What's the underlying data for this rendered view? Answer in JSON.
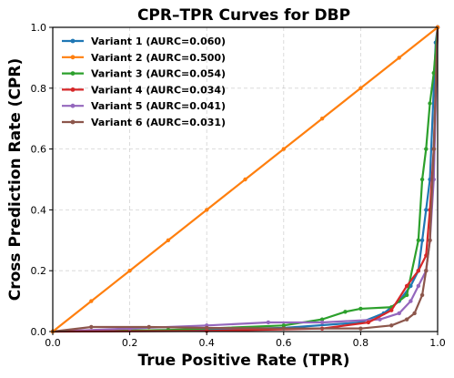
{
  "chart_data": {
    "type": "line",
    "title": "CPR–TPR Curves for DBP",
    "xlabel": "True Positive Rate (TPR)",
    "ylabel": "Cross Prediction Rate (CPR)",
    "xlim": [
      0,
      1
    ],
    "ylim": [
      0,
      1
    ],
    "xticks": [
      "0.0",
      "0.2",
      "0.4",
      "0.6",
      "0.8",
      "1.0"
    ],
    "yticks": [
      "0.0",
      "0.2",
      "0.4",
      "0.6",
      "0.8",
      "1.0"
    ],
    "grid": true,
    "legend_position": "top-left",
    "series": [
      {
        "name": "Variant 1 (AURC=0.060)",
        "color": "#1f77b4",
        "x": [
          0.0,
          0.3,
          0.6,
          0.8,
          0.86,
          0.9,
          0.93,
          0.95,
          0.96,
          0.97,
          0.98,
          0.99,
          0.995,
          1.0
        ],
        "y": [
          0.0,
          0.005,
          0.012,
          0.03,
          0.06,
          0.1,
          0.15,
          0.2,
          0.3,
          0.4,
          0.5,
          0.8,
          0.95,
          1.0
        ]
      },
      {
        "name": "Variant 2 (AURC=0.500)",
        "color": "#ff7f0e",
        "x": [
          0.0,
          0.1,
          0.2,
          0.3,
          0.4,
          0.5,
          0.6,
          0.7,
          0.8,
          0.9,
          1.0
        ],
        "y": [
          0.0,
          0.1,
          0.2,
          0.3,
          0.4,
          0.5,
          0.6,
          0.7,
          0.8,
          0.9,
          1.0
        ]
      },
      {
        "name": "Variant 3 (AURC=0.054)",
        "color": "#2ca02c",
        "x": [
          0.0,
          0.3,
          0.6,
          0.7,
          0.76,
          0.8,
          0.88,
          0.92,
          0.95,
          0.96,
          0.97,
          0.98,
          0.99,
          1.0
        ],
        "y": [
          0.0,
          0.005,
          0.02,
          0.04,
          0.065,
          0.075,
          0.08,
          0.12,
          0.3,
          0.5,
          0.6,
          0.75,
          0.85,
          1.0
        ]
      },
      {
        "name": "Variant 4 (AURC=0.034)",
        "color": "#d62728",
        "x": [
          0.0,
          0.4,
          0.7,
          0.82,
          0.88,
          0.92,
          0.95,
          0.97,
          0.98,
          0.99,
          1.0
        ],
        "y": [
          0.0,
          0.002,
          0.01,
          0.03,
          0.07,
          0.15,
          0.2,
          0.25,
          0.4,
          0.6,
          1.0
        ]
      },
      {
        "name": "Variant 5 (AURC=0.041)",
        "color": "#9467bd",
        "x": [
          0.0,
          0.2,
          0.4,
          0.56,
          0.7,
          0.85,
          0.9,
          0.93,
          0.95,
          0.97,
          0.98,
          0.99,
          1.0
        ],
        "y": [
          0.0,
          0.01,
          0.02,
          0.03,
          0.03,
          0.04,
          0.06,
          0.1,
          0.15,
          0.2,
          0.3,
          0.5,
          1.0
        ]
      },
      {
        "name": "Variant 6 (AURC=0.031)",
        "color": "#8c564b",
        "x": [
          0.0,
          0.1,
          0.25,
          0.4,
          0.6,
          0.8,
          0.88,
          0.92,
          0.94,
          0.96,
          0.97,
          0.98,
          0.99,
          1.0
        ],
        "y": [
          0.0,
          0.015,
          0.015,
          0.012,
          0.01,
          0.01,
          0.02,
          0.04,
          0.06,
          0.12,
          0.2,
          0.3,
          0.6,
          1.0
        ]
      }
    ]
  }
}
